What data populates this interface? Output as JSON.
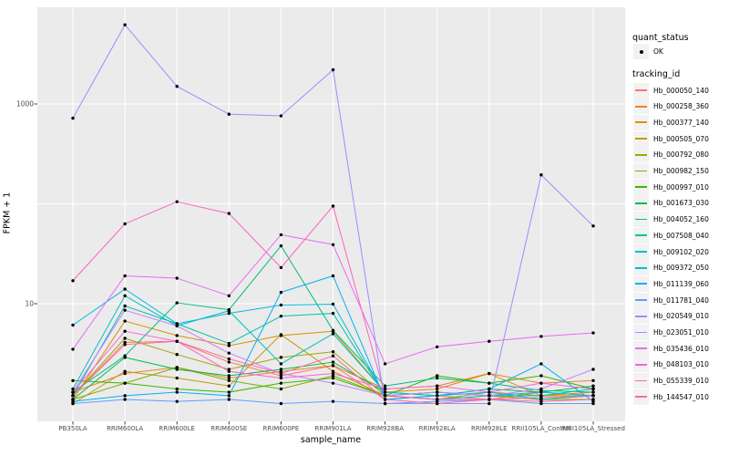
{
  "figure": {
    "background": "#FFFFFF",
    "panel_background": "#EBEBEB",
    "gridline_color": "#FFFFFF",
    "tick_color": "#333333",
    "tick_label_color": "#4D4D4D"
  },
  "legend": {
    "quant_status_title": "quant_status",
    "quant_status_items": [
      "OK"
    ],
    "tracking_id_title": "tracking_id"
  },
  "chart_data": {
    "type": "line",
    "title": "",
    "xlabel": "sample_name",
    "ylabel": "FPKM + 1",
    "y_scale": "log10",
    "ylim": [
      0.66,
      9300
    ],
    "y_tick_labels": [
      "1000",
      "10"
    ],
    "y_tick_values": [
      1000,
      10
    ],
    "y_gridlines": [
      10,
      100,
      1000
    ],
    "grid": true,
    "legend_position": "right",
    "marker": {
      "shape": "point",
      "color": "#000000"
    },
    "categories": [
      "PB350LA",
      "RRIM600LA",
      "RRIM600LE",
      "RRIM600SE",
      "RRIM600PE",
      "RRIM901LA",
      "RRIM928BA",
      "RRIM928LA",
      "RRIM928LE",
      "RRII105LA_Control",
      "RRII105LA_Stressed"
    ],
    "series": [
      {
        "name": "Hb_000050_140",
        "color": "#F8766D",
        "quant_status": "OK",
        "values": [
          1.2,
          4.1,
          4.2,
          2.6,
          1.9,
          2.4,
          1.1,
          1.2,
          1.1,
          1.3,
          1.2
        ]
      },
      {
        "name": "Hb_000258_360",
        "color": "#EA8331",
        "quant_status": "OK",
        "values": [
          1.3,
          2.0,
          2.3,
          1.8,
          2.1,
          2.4,
          1.4,
          1.5,
          2.0,
          1.6,
          1.7
        ]
      },
      {
        "name": "Hb_000377_140",
        "color": "#D89000",
        "quant_status": "OK",
        "values": [
          1.1,
          6.7,
          4.8,
          3.8,
          4.8,
          5.3,
          1.3,
          1.4,
          2.0,
          1.2,
          1.3
        ]
      },
      {
        "name": "Hb_000505_070",
        "color": "#C09B00",
        "quant_status": "OK",
        "values": [
          1.0,
          2.1,
          1.8,
          1.5,
          4.9,
          2.1,
          1.2,
          1.1,
          1.2,
          1.1,
          1.1
        ]
      },
      {
        "name": "Hb_000792_080",
        "color": "#A3A500",
        "quant_status": "OK",
        "values": [
          1.2,
          4.5,
          3.1,
          2.2,
          2.9,
          3.3,
          1.2,
          1.1,
          1.3,
          1.2,
          1.2
        ]
      },
      {
        "name": "Hb_000982_150",
        "color": "#7CAE00",
        "quant_status": "OK",
        "values": [
          1.1,
          1.6,
          2.3,
          1.7,
          1.4,
          1.9,
          1.2,
          1.3,
          1.2,
          1.1,
          1.2
        ]
      },
      {
        "name": "Hb_000997_010",
        "color": "#39B600",
        "quant_status": "OK",
        "values": [
          1.7,
          1.6,
          1.4,
          1.3,
          1.6,
          1.8,
          1.2,
          1.9,
          1.6,
          1.9,
          1.4
        ]
      },
      {
        "name": "Hb_001673_030",
        "color": "#00BB4E",
        "quant_status": "OK",
        "values": [
          1.1,
          2.9,
          2.2,
          1.9,
          2.2,
          2.6,
          1.3,
          1.2,
          1.4,
          1.3,
          1.5
        ]
      },
      {
        "name": "Hb_004052_160",
        "color": "#00BF7D",
        "quant_status": "OK",
        "values": [
          1.3,
          3.0,
          10.2,
          8.7,
          38,
          5.4,
          1.5,
          1.8,
          1.6,
          1.35,
          1.3
        ]
      },
      {
        "name": "Hb_007508_040",
        "color": "#00C1A3",
        "quant_status": "OK",
        "values": [
          1.2,
          9.5,
          6.3,
          4.0,
          7.5,
          8.0,
          1.2,
          1.3,
          1.2,
          1.2,
          1.4
        ]
      },
      {
        "name": "Hb_009102_020",
        "color": "#00BFC4",
        "quant_status": "OK",
        "values": [
          1.4,
          12,
          6.0,
          8.5,
          2.5,
          5.0,
          1.3,
          1.2,
          1.3,
          1.1,
          1.2
        ]
      },
      {
        "name": "Hb_009372_050",
        "color": "#00BAE0",
        "quant_status": "OK",
        "values": [
          6.1,
          14,
          6.3,
          8.0,
          9.7,
          9.9,
          1.2,
          1.1,
          1.2,
          1.3,
          1.2
        ]
      },
      {
        "name": "Hb_011139_060",
        "color": "#00B0F6",
        "quant_status": "OK",
        "values": [
          1.05,
          1.2,
          1.3,
          1.2,
          13,
          19,
          1.1,
          1.2,
          1.4,
          2.5,
          1.05
        ]
      },
      {
        "name": "Hb_011781_040",
        "color": "#5E9EFF",
        "quant_status": "OK",
        "values": [
          1.0,
          1.1,
          1.05,
          1.1,
          1.0,
          1.05,
          1.0,
          1.05,
          1.1,
          1.0,
          1.0
        ]
      },
      {
        "name": "Hb_020549_010",
        "color": "#9590FF",
        "quant_status": "OK",
        "values": [
          720,
          6200,
          1500,
          790,
          760,
          2200,
          1.0,
          1.0,
          1.0,
          195,
          60
        ]
      },
      {
        "name": "Hb_023051_010",
        "color": "#C77CFF",
        "quant_status": "OK",
        "values": [
          1.3,
          8.6,
          6.0,
          3.2,
          2.0,
          1.6,
          1.2,
          1.3,
          1.2,
          1.4,
          2.2
        ]
      },
      {
        "name": "Hb_035436_010",
        "color": "#E76BF3",
        "quant_status": "OK",
        "values": [
          3.5,
          19,
          18,
          12,
          49,
          39,
          2.5,
          3.7,
          4.2,
          4.7,
          5.1
        ]
      },
      {
        "name": "Hb_048103_010",
        "color": "#FA62DB",
        "quant_status": "OK",
        "values": [
          1.3,
          5.3,
          4.2,
          2.1,
          1.8,
          2.0,
          1.4,
          1.5,
          1.3,
          1.6,
          1.4
        ]
      },
      {
        "name": "Hb_055339_010",
        "color": "#FF62BC",
        "quant_status": "OK",
        "values": [
          17,
          63,
          105,
          80,
          23,
          95,
          1.2,
          1.1,
          1.1,
          1.15,
          1.2
        ]
      },
      {
        "name": "Hb_144547_010",
        "color": "#FF6A98",
        "quant_status": "OK",
        "values": [
          1.2,
          3.9,
          4.2,
          2.8,
          2.0,
          3.0,
          1.1,
          1.0,
          1.1,
          1.05,
          1.1
        ]
      }
    ]
  }
}
